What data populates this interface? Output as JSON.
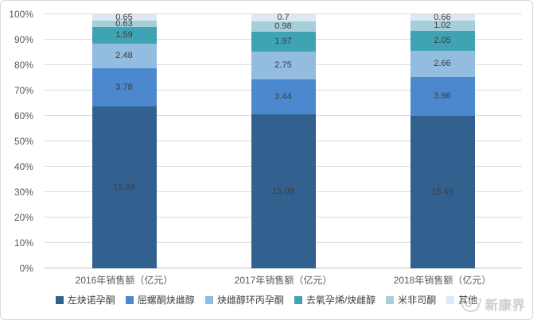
{
  "chart_data": {
    "type": "bar",
    "subtype": "stacked-100-percent",
    "title": "",
    "categories": [
      "2016年销售额（亿元）",
      "2017年销售额（亿元）",
      "2018年销售额（亿元）"
    ],
    "series": [
      {
        "name": "左炔诺孕酮",
        "color": "#33618F",
        "values": [
          15.94,
          15.08,
          15.45
        ]
      },
      {
        "name": "屈螺酮炔雌醇",
        "color": "#4C88CE",
        "values": [
          3.78,
          3.44,
          3.96
        ]
      },
      {
        "name": "炔雌醇环丙孕酮",
        "color": "#92BCE0",
        "values": [
          2.48,
          2.75,
          2.66
        ]
      },
      {
        "name": "去氧孕烯/炔雌醇",
        "color": "#3FA3B4",
        "values": [
          1.59,
          1.97,
          2.05
        ]
      },
      {
        "name": "米非司酮",
        "color": "#A5CFD9",
        "values": [
          0.63,
          0.98,
          1.02
        ]
      },
      {
        "name": "其他",
        "color": "#DCE8F3",
        "values": [
          0.65,
          0.7,
          0.66
        ]
      }
    ],
    "y_axis": {
      "ticks": [
        "0%",
        "10%",
        "20%",
        "30%",
        "40%",
        "50%",
        "60%",
        "70%",
        "80%",
        "90%",
        "100%"
      ],
      "min": 0,
      "max": 100,
      "unit": "%"
    },
    "grid": true,
    "legend_position": "bottom",
    "data_labels": true
  },
  "watermark": {
    "text": "新康界"
  }
}
